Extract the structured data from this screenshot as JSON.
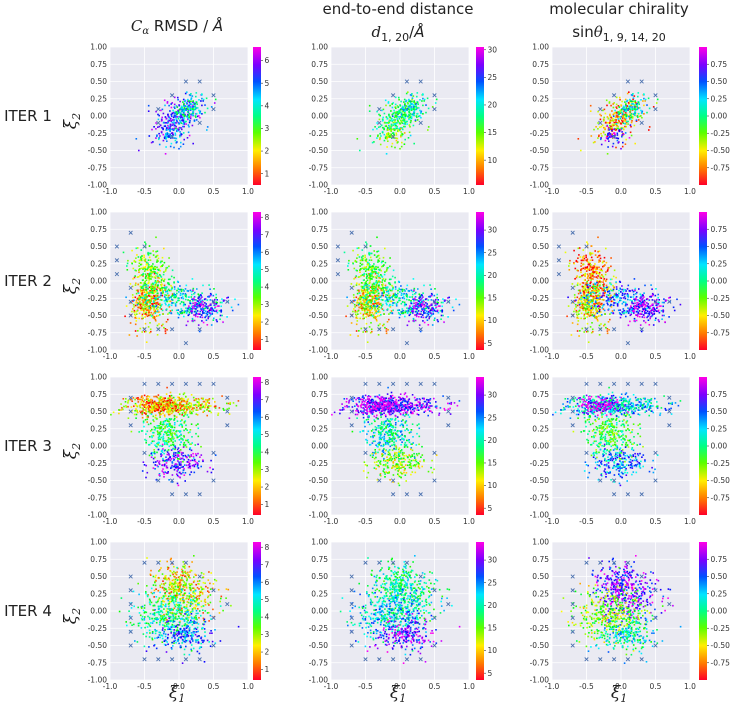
{
  "figure": {
    "columns": [
      {
        "title_lines": [
          "Cα RMSD / Å"
        ],
        "title_main": "C",
        "title_sub": "α",
        "title_rest": " RMSD / Å"
      },
      {
        "title_lines": [
          "end-to-end distance",
          "d1,20/Å"
        ]
      },
      {
        "title_lines": [
          "molecular chirality",
          "sinθ1,9,14,20"
        ]
      }
    ],
    "rows": [
      "ITER 1",
      "ITER 2",
      "ITER 3",
      "ITER 4"
    ],
    "xlabel": "ξ1",
    "ylabel": "ξ2"
  },
  "chart_data": {
    "type": "scatter",
    "xlim": [
      -1.0,
      1.0
    ],
    "ylim": [
      -1.0,
      1.0
    ],
    "xticks": [
      "-1.0",
      "-0.5",
      "0.0",
      "0.5",
      "1.0"
    ],
    "yticks": [
      "1.00",
      "0.75",
      "0.50",
      "0.25",
      "0.00",
      "-0.25",
      "-0.50",
      "-0.75",
      "-1.00"
    ],
    "grid": true,
    "colormap": "gist_rainbow",
    "colorbars": [
      {
        "row": 1,
        "col": 1,
        "min": 0.5,
        "max": 6.6,
        "ticks": [
          1,
          2,
          3,
          4,
          5,
          6
        ]
      },
      {
        "row": 1,
        "col": 2,
        "min": 5.5,
        "max": 30.5,
        "ticks": [
          10,
          15,
          20,
          25,
          30
        ]
      },
      {
        "row": 1,
        "col": 3,
        "min": -1.0,
        "max": 1.0,
        "ticks": [
          0.75,
          0.5,
          0.25,
          0.0,
          -0.25,
          -0.5,
          -0.75
        ]
      },
      {
        "row": 2,
        "col": 1,
        "min": 0.4,
        "max": 8.3,
        "ticks": [
          1,
          2,
          3,
          4,
          5,
          6,
          7,
          8
        ]
      },
      {
        "row": 2,
        "col": 2,
        "min": 3.5,
        "max": 34.0,
        "ticks": [
          5,
          10,
          15,
          20,
          25,
          30
        ]
      },
      {
        "row": 2,
        "col": 3,
        "min": -1.0,
        "max": 1.0,
        "ticks": [
          0.75,
          0.5,
          0.25,
          0.0,
          -0.25,
          -0.5,
          -0.75
        ]
      },
      {
        "row": 3,
        "col": 1,
        "min": 0.4,
        "max": 8.3,
        "ticks": [
          1,
          2,
          3,
          4,
          5,
          6,
          7,
          8
        ]
      },
      {
        "row": 3,
        "col": 2,
        "min": 3.5,
        "max": 34.0,
        "ticks": [
          5,
          10,
          15,
          20,
          25,
          30
        ]
      },
      {
        "row": 3,
        "col": 3,
        "min": -1.0,
        "max": 1.0,
        "ticks": [
          0.75,
          0.5,
          0.25,
          0.0,
          -0.25,
          -0.5,
          -0.75
        ]
      },
      {
        "row": 4,
        "col": 1,
        "min": 0.4,
        "max": 8.3,
        "ticks": [
          1,
          2,
          3,
          4,
          5,
          6,
          7,
          8
        ]
      },
      {
        "row": 4,
        "col": 2,
        "min": 3.5,
        "max": 34.0,
        "ticks": [
          5,
          10,
          15,
          20,
          25,
          30
        ]
      },
      {
        "row": 4,
        "col": 3,
        "min": -1.0,
        "max": 1.0,
        "ticks": [
          0.75,
          0.5,
          0.25,
          0.0,
          -0.25,
          -0.5,
          -0.75
        ]
      }
    ],
    "markers_x": [
      {
        "row": 1,
        "points": [
          [
            0.1,
            0.5
          ],
          [
            0.3,
            0.5
          ],
          [
            -0.1,
            0.3
          ],
          [
            0.5,
            0.3
          ],
          [
            -0.3,
            0.1
          ],
          [
            0.5,
            0.1
          ],
          [
            -0.3,
            -0.1
          ],
          [
            0.3,
            -0.1
          ],
          [
            -0.1,
            -0.3
          ]
        ]
      },
      {
        "row": 2,
        "points": [
          [
            -0.7,
            0.7
          ],
          [
            -0.9,
            0.5
          ],
          [
            -0.5,
            0.5
          ],
          [
            -0.9,
            0.3
          ],
          [
            -0.9,
            0.1
          ],
          [
            -0.7,
            -0.1
          ],
          [
            -0.7,
            -0.3
          ],
          [
            -0.7,
            -0.5
          ],
          [
            -0.5,
            -0.7
          ],
          [
            -0.3,
            -0.7
          ],
          [
            -0.1,
            -0.7
          ],
          [
            0.1,
            -0.9
          ],
          [
            0.3,
            -0.7
          ],
          [
            0.5,
            -0.3
          ],
          [
            0.7,
            -0.3
          ]
        ]
      },
      {
        "row": 3,
        "points": [
          [
            -0.5,
            0.9
          ],
          [
            -0.3,
            0.9
          ],
          [
            -0.1,
            0.9
          ],
          [
            0.1,
            0.9
          ],
          [
            0.3,
            0.9
          ],
          [
            0.5,
            0.9
          ],
          [
            -0.7,
            0.7
          ],
          [
            0.7,
            0.7
          ],
          [
            -0.7,
            0.5
          ],
          [
            0.7,
            0.5
          ],
          [
            -0.7,
            0.3
          ],
          [
            0.7,
            0.3
          ],
          [
            -0.5,
            -0.1
          ],
          [
            0.5,
            -0.1
          ],
          [
            -0.1,
            -0.5
          ],
          [
            -0.3,
            -0.5
          ],
          [
            0.5,
            -0.5
          ],
          [
            -0.1,
            -0.7
          ],
          [
            0.1,
            -0.7
          ],
          [
            0.3,
            -0.7
          ]
        ]
      },
      {
        "row": 4,
        "points": [
          [
            -0.5,
            0.7
          ],
          [
            -0.3,
            0.7
          ],
          [
            -0.1,
            0.7
          ],
          [
            0.1,
            0.7
          ],
          [
            0.3,
            0.5
          ],
          [
            -0.7,
            0.5
          ],
          [
            0.5,
            0.3
          ],
          [
            -0.7,
            0.3
          ],
          [
            0.7,
            0.1
          ],
          [
            -0.7,
            0.1
          ],
          [
            -0.7,
            -0.1
          ],
          [
            0.5,
            -0.1
          ],
          [
            -0.7,
            -0.3
          ],
          [
            -0.7,
            -0.5
          ],
          [
            -0.5,
            -0.7
          ],
          [
            -0.3,
            -0.7
          ],
          [
            -0.1,
            -0.7
          ],
          [
            0.1,
            -0.7
          ],
          [
            0.3,
            -0.7
          ],
          [
            0.5,
            -0.5
          ]
        ]
      }
    ],
    "clusters": [
      {
        "row": 1,
        "blobs": [
          {
            "cx": -0.05,
            "cy": -0.05,
            "sx": 0.22,
            "sy": 0.12,
            "angle": 35,
            "n": 260,
            "vals": [
              0.8,
              0.45,
              0.15
            ]
          },
          {
            "cx": 0.15,
            "cy": 0.1,
            "sx": 0.12,
            "sy": 0.08,
            "angle": 40,
            "n": 120,
            "vals": [
              0.55,
              0.55,
              0.55
            ]
          },
          {
            "cx": -0.1,
            "cy": -0.3,
            "sx": 0.1,
            "sy": 0.08,
            "angle": 0,
            "n": 60,
            "vals": [
              0.7,
              0.3,
              0.85
            ]
          }
        ]
      },
      {
        "row": 2,
        "blobs": [
          {
            "cx": -0.45,
            "cy": -0.3,
            "sx": 0.12,
            "sy": 0.18,
            "angle": 0,
            "n": 380,
            "vals": [
              0.15,
              0.2,
              0.2
            ]
          },
          {
            "cx": -0.4,
            "cy": 0.1,
            "sx": 0.12,
            "sy": 0.22,
            "angle": 20,
            "n": 260,
            "vals": [
              0.35,
              0.4,
              0.1
            ]
          },
          {
            "cx": 0.05,
            "cy": -0.3,
            "sx": 0.3,
            "sy": 0.12,
            "angle": -10,
            "n": 300,
            "vals": [
              0.55,
              0.55,
              0.7
            ]
          },
          {
            "cx": 0.35,
            "cy": -0.4,
            "sx": 0.15,
            "sy": 0.1,
            "angle": 0,
            "n": 160,
            "vals": [
              0.85,
              0.85,
              0.92
            ]
          }
        ]
      },
      {
        "row": 3,
        "blobs": [
          {
            "cx": -0.1,
            "cy": 0.58,
            "sx": 0.35,
            "sy": 0.07,
            "angle": 0,
            "n": 480,
            "vals": [
              0.2,
              0.85,
              0.6
            ]
          },
          {
            "cx": -0.3,
            "cy": 0.58,
            "sx": 0.15,
            "sy": 0.06,
            "angle": 0,
            "n": 150,
            "vals": [
              0.08,
              0.95,
              0.95
            ]
          },
          {
            "cx": -0.15,
            "cy": 0.15,
            "sx": 0.18,
            "sy": 0.15,
            "angle": 0,
            "n": 300,
            "vals": [
              0.45,
              0.55,
              0.4
            ]
          },
          {
            "cx": -0.05,
            "cy": -0.25,
            "sx": 0.2,
            "sy": 0.12,
            "angle": 0,
            "n": 220,
            "vals": [
              0.85,
              0.3,
              0.7
            ]
          }
        ]
      },
      {
        "row": 4,
        "blobs": [
          {
            "cx": 0.05,
            "cy": 0.3,
            "sx": 0.22,
            "sy": 0.18,
            "angle": -25,
            "n": 450,
            "vals": [
              0.2,
              0.5,
              0.85
            ]
          },
          {
            "cx": -0.15,
            "cy": -0.05,
            "sx": 0.25,
            "sy": 0.18,
            "angle": 0,
            "n": 380,
            "vals": [
              0.5,
              0.6,
              0.3
            ]
          },
          {
            "cx": 0.1,
            "cy": -0.35,
            "sx": 0.22,
            "sy": 0.12,
            "angle": 0,
            "n": 220,
            "vals": [
              0.7,
              0.85,
              0.55
            ]
          }
        ]
      }
    ]
  }
}
